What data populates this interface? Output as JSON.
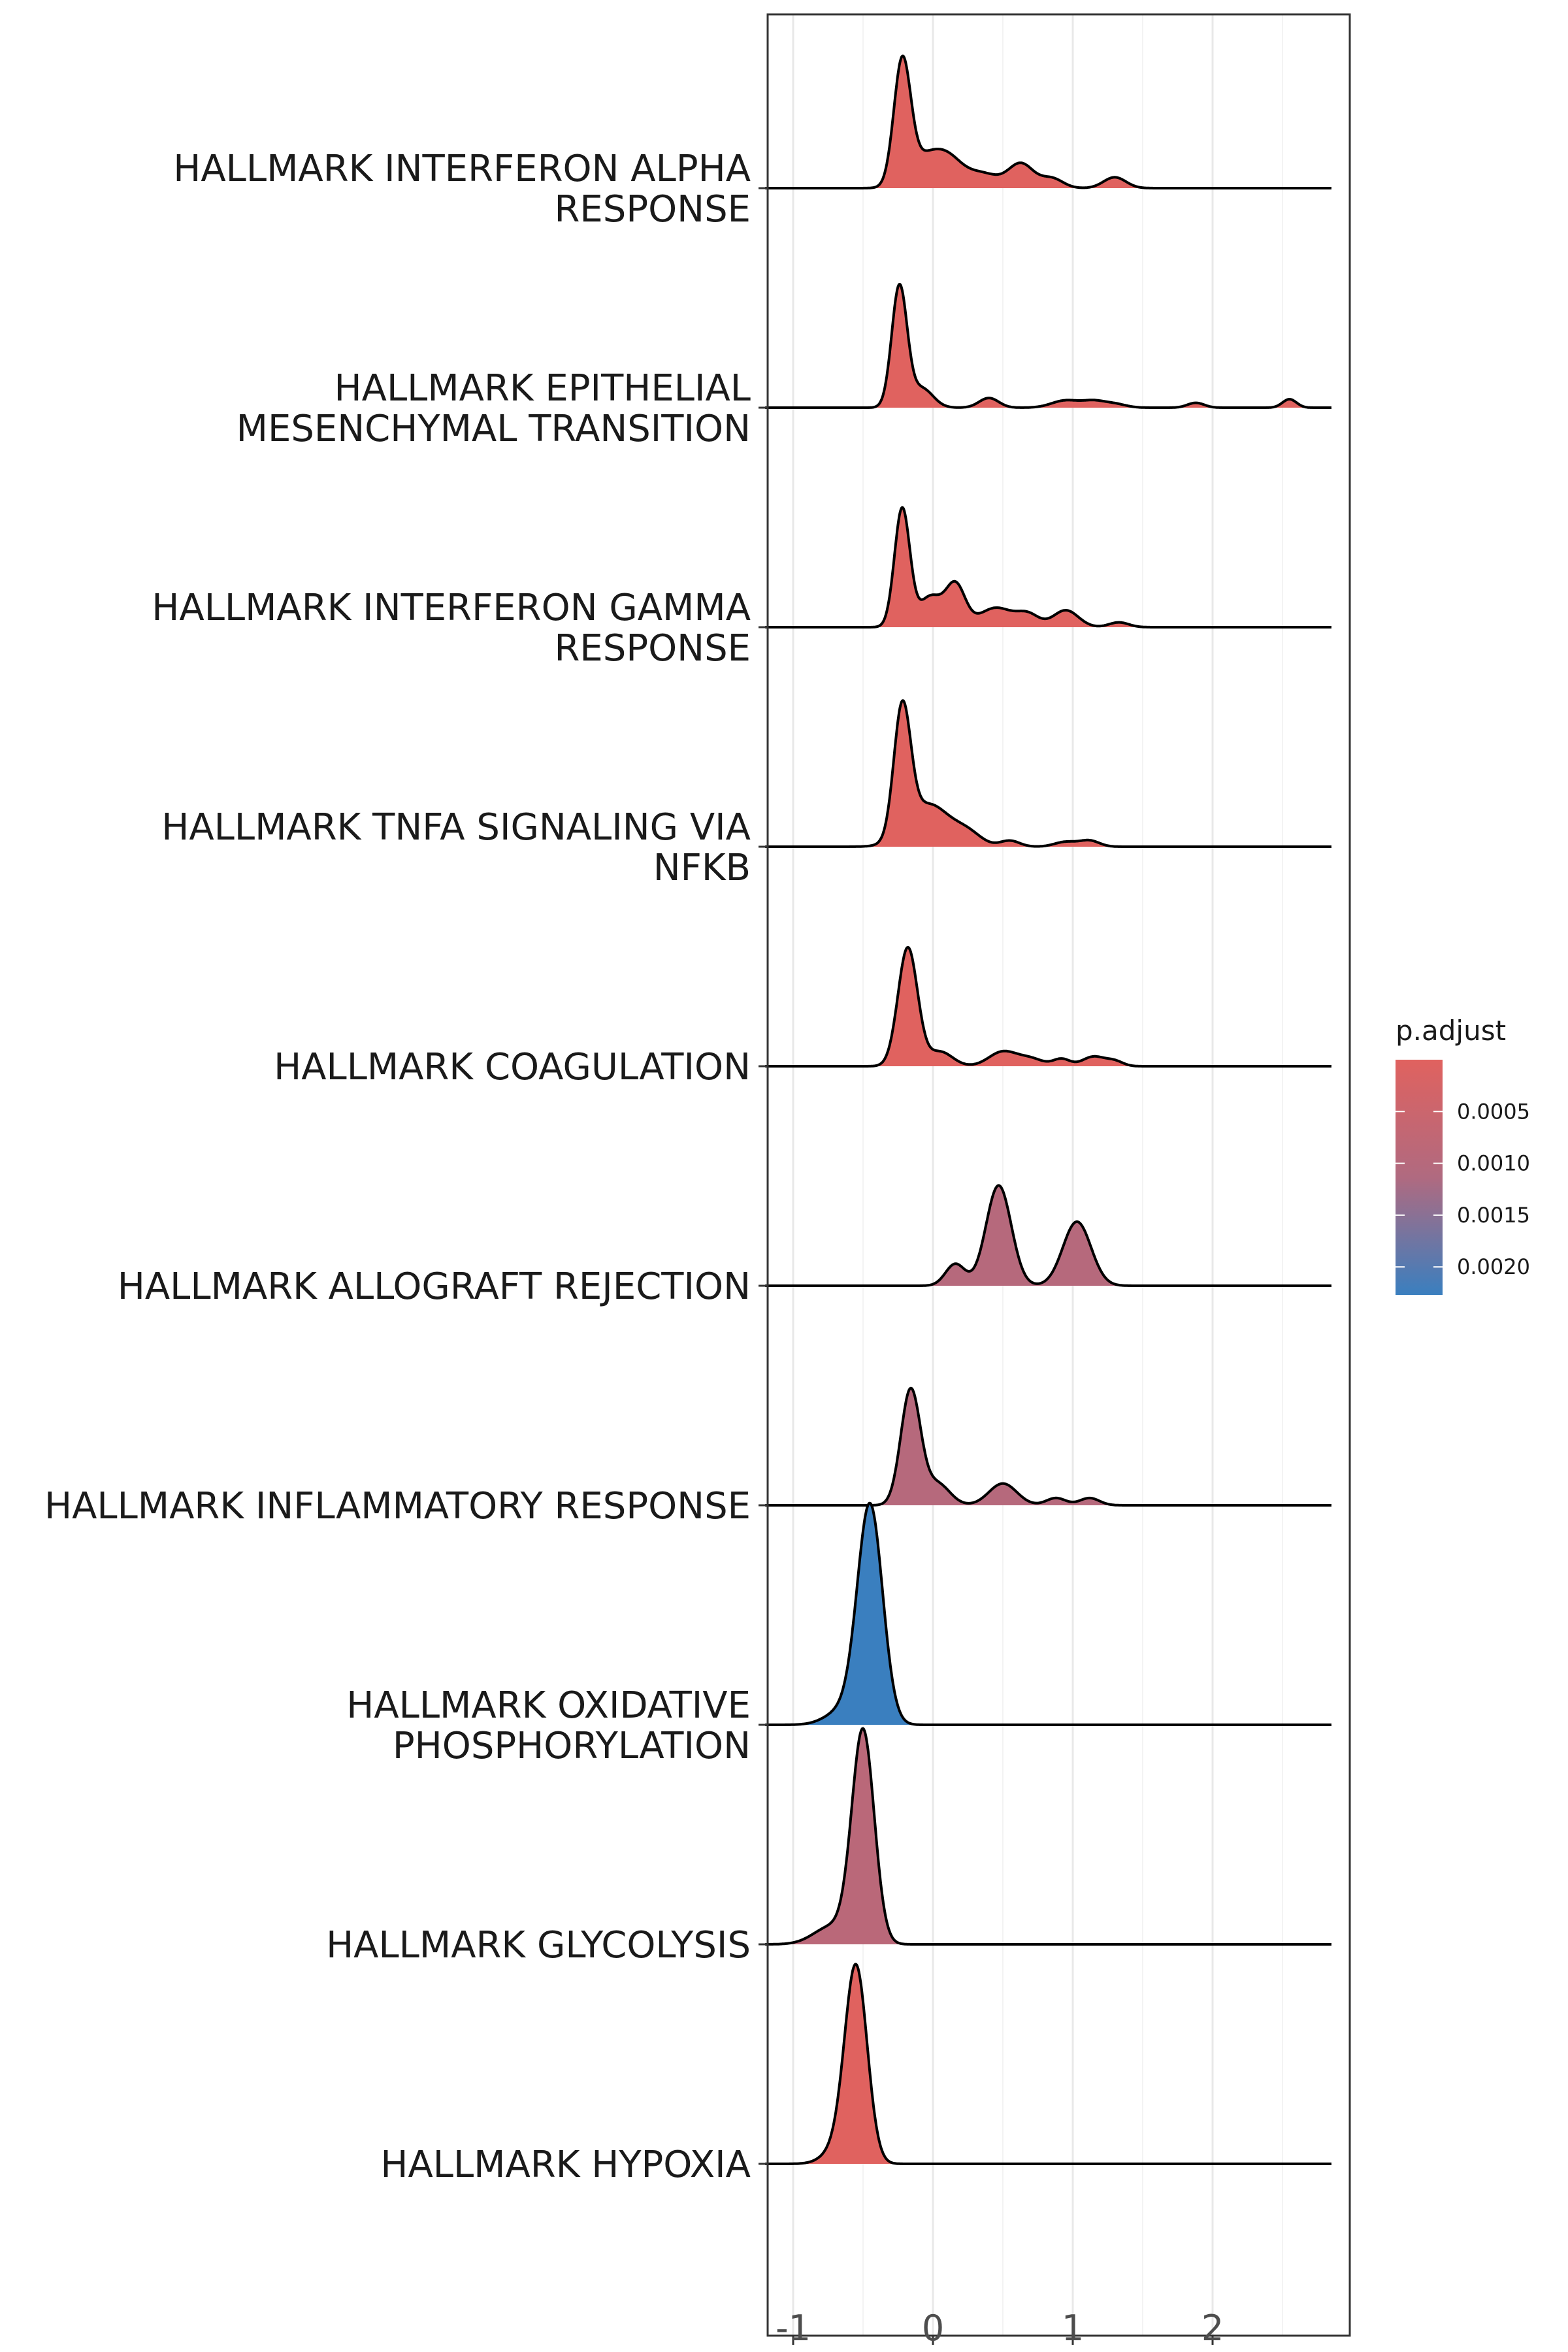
{
  "chart_data": {
    "type": "ridgeline",
    "xlabel": "",
    "ylabel": "",
    "xlim": [
      -1.2,
      2.95
    ],
    "x_ticks": [
      -1,
      0,
      1,
      2
    ],
    "x_tick_labels": [
      "-1",
      "0",
      "1",
      "2"
    ],
    "grid": true,
    "legend": {
      "title": "p.adjust",
      "placement": "right",
      "range": [
        0,
        0.00227
      ],
      "ticks": [
        0.0005,
        0.001,
        0.0015,
        0.002
      ],
      "tick_labels": [
        "0.0005",
        "0.0010",
        "0.0015",
        "0.0020"
      ],
      "low_color": "#e0625f",
      "high_color": "#3a7fbf"
    },
    "series": [
      {
        "label_lines": [
          "HALLMARK INTERFERON ALPHA",
          "RESPONSE"
        ],
        "p_adjust": 1e-05,
        "peaks": [
          [
            -0.22,
            0.06,
            1.0
          ],
          [
            -0.05,
            0.12,
            0.25
          ],
          [
            0.12,
            0.1,
            0.18
          ],
          [
            0.35,
            0.12,
            0.12
          ],
          [
            0.63,
            0.09,
            0.2
          ],
          [
            0.85,
            0.08,
            0.08
          ],
          [
            1.3,
            0.08,
            0.09
          ]
        ]
      },
      {
        "label_lines": [
          "HALLMARK EPITHELIAL",
          "MESENCHYMAL TRANSITION"
        ],
        "p_adjust": 1e-05,
        "peaks": [
          [
            -0.24,
            0.055,
            1.0
          ],
          [
            -0.08,
            0.08,
            0.16
          ],
          [
            0.4,
            0.07,
            0.08
          ],
          [
            0.95,
            0.1,
            0.06
          ],
          [
            1.15,
            0.08,
            0.05
          ],
          [
            1.3,
            0.08,
            0.03
          ],
          [
            1.88,
            0.06,
            0.04
          ],
          [
            2.55,
            0.05,
            0.07
          ]
        ]
      },
      {
        "label_lines": [
          "HALLMARK INTERFERON GAMMA",
          "RESPONSE"
        ],
        "p_adjust": 1e-05,
        "peaks": [
          [
            -0.22,
            0.055,
            0.98
          ],
          [
            -0.02,
            0.08,
            0.25
          ],
          [
            0.16,
            0.07,
            0.35
          ],
          [
            0.45,
            0.12,
            0.16
          ],
          [
            0.68,
            0.08,
            0.1
          ],
          [
            0.95,
            0.09,
            0.14
          ],
          [
            1.33,
            0.07,
            0.04
          ]
        ]
      },
      {
        "label_lines": [
          "HALLMARK TNFA SIGNALING VIA",
          "NFKB"
        ],
        "p_adjust": 1e-05,
        "peaks": [
          [
            -0.22,
            0.06,
            1.05
          ],
          [
            -0.03,
            0.15,
            0.35
          ],
          [
            0.25,
            0.1,
            0.1
          ],
          [
            0.55,
            0.07,
            0.05
          ],
          [
            0.95,
            0.08,
            0.04
          ],
          [
            1.12,
            0.07,
            0.05
          ]
        ]
      },
      {
        "label_lines": [
          "HALLMARK COAGULATION"
        ],
        "p_adjust": 1e-05,
        "peaks": [
          [
            -0.18,
            0.07,
            0.98
          ],
          [
            0.05,
            0.09,
            0.12
          ],
          [
            0.5,
            0.1,
            0.12
          ],
          [
            0.7,
            0.09,
            0.06
          ],
          [
            0.92,
            0.06,
            0.06
          ],
          [
            1.15,
            0.08,
            0.08
          ],
          [
            1.3,
            0.06,
            0.04
          ]
        ]
      },
      {
        "label_lines": [
          "HALLMARK ALLOGRAFT REJECTION"
        ],
        "p_adjust": 0.001,
        "peaks": [
          [
            0.16,
            0.07,
            0.18
          ],
          [
            0.47,
            0.09,
            0.83
          ],
          [
            1.03,
            0.1,
            0.53
          ]
        ]
      },
      {
        "label_lines": [
          "HALLMARK INFLAMMATORY RESPONSE"
        ],
        "p_adjust": 0.001,
        "peaks": [
          [
            -0.16,
            0.07,
            0.95
          ],
          [
            0.03,
            0.09,
            0.18
          ],
          [
            0.5,
            0.1,
            0.18
          ],
          [
            0.88,
            0.07,
            0.06
          ],
          [
            1.12,
            0.07,
            0.06
          ]
        ]
      },
      {
        "label_lines": [
          "HALLMARK OXIDATIVE",
          "PHOSPHORYLATION"
        ],
        "p_adjust": 0.00227,
        "peaks": [
          [
            -0.45,
            0.09,
            1.8
          ],
          [
            -0.64,
            0.12,
            0.12
          ]
        ]
      },
      {
        "label_lines": [
          "HALLMARK GLYCOLYSIS"
        ],
        "p_adjust": 0.0009,
        "peaks": [
          [
            -0.5,
            0.08,
            1.75
          ],
          [
            -0.72,
            0.13,
            0.15
          ]
        ]
      },
      {
        "label_lines": [
          "HALLMARK HYPOXIA"
        ],
        "p_adjust": 1e-05,
        "peaks": [
          [
            -0.55,
            0.08,
            1.6
          ],
          [
            -0.68,
            0.1,
            0.12
          ]
        ]
      }
    ]
  }
}
